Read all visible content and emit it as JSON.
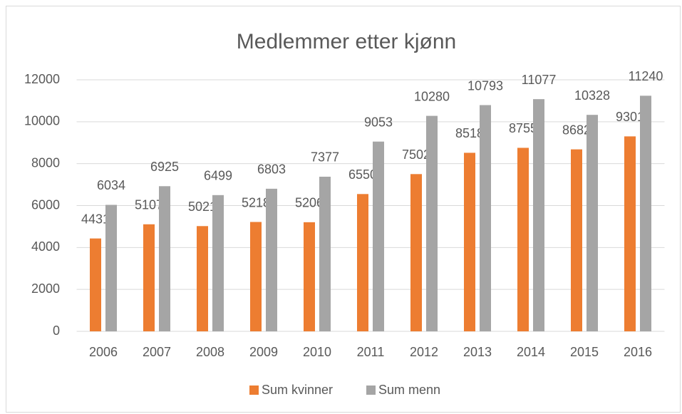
{
  "chart_data": {
    "type": "bar",
    "title": "Medlemmer etter kjønn",
    "categories": [
      "2006",
      "2007",
      "2008",
      "2009",
      "2010",
      "2011",
      "2012",
      "2013",
      "2014",
      "2015",
      "2016"
    ],
    "series": [
      {
        "name": "Sum kvinner",
        "color": "#ed7d31",
        "values": [
          4431,
          5107,
          5021,
          5218,
          5206,
          6550,
          7502,
          8518,
          8755,
          8682,
          9301
        ]
      },
      {
        "name": "Sum menn",
        "color": "#a5a5a5",
        "values": [
          6034,
          6925,
          6499,
          6803,
          7377,
          9053,
          10280,
          10793,
          11077,
          10328,
          11240
        ]
      }
    ],
    "ylim": [
      0,
      12000
    ],
    "yticks": [
      0,
      2000,
      4000,
      6000,
      8000,
      10000,
      12000
    ],
    "grid": true,
    "legend": "bottom"
  }
}
